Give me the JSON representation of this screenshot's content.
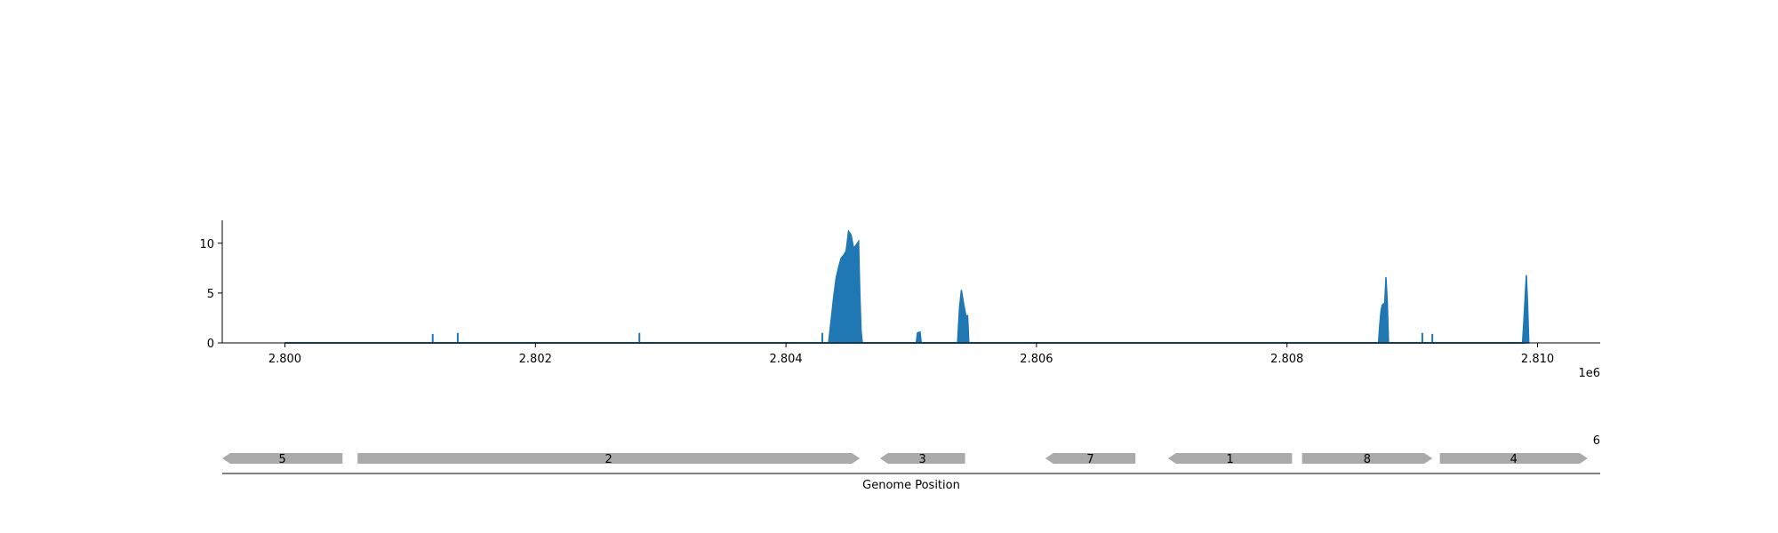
{
  "chart_data": {
    "type": "area",
    "title": "",
    "xlabel": "Genome Position",
    "ylabel": "",
    "x_offset_label": "1e6",
    "xlim": [
      2799500,
      2810500
    ],
    "ylim": [
      0,
      12.3
    ],
    "x_ticks": [
      2800000,
      2802000,
      2804000,
      2806000,
      2808000,
      2810000
    ],
    "x_tick_labels": [
      "2.800",
      "2.802",
      "2.804",
      "2.806",
      "2.808",
      "2.810"
    ],
    "y_ticks": [
      0,
      5,
      10
    ],
    "y_tick_labels": [
      "0",
      "5",
      "10"
    ],
    "grid": false,
    "legend": "none",
    "coverage_color": "#1f77b4",
    "baseline": [
      2800000,
      2809900
    ],
    "spikes": [
      {
        "x": 2801180,
        "y": 0.9
      },
      {
        "x": 2801380,
        "y": 1.0
      },
      {
        "x": 2802830,
        "y": 1.0
      },
      {
        "x": 2804290,
        "y": 1.0
      },
      {
        "x": 2805060,
        "y": 1.1
      },
      {
        "x": 2809080,
        "y": 1.0
      },
      {
        "x": 2809160,
        "y": 0.9
      }
    ],
    "peaks": [
      {
        "points": [
          [
            2804340,
            0
          ],
          [
            2804360,
            2.2
          ],
          [
            2804380,
            4.5
          ],
          [
            2804400,
            6.5
          ],
          [
            2804420,
            7.6
          ],
          [
            2804440,
            8.5
          ],
          [
            2804460,
            8.8
          ],
          [
            2804480,
            9.2
          ],
          [
            2804500,
            11.2
          ],
          [
            2804520,
            10.8
          ],
          [
            2804540,
            9.5
          ],
          [
            2804560,
            9.8
          ],
          [
            2804580,
            10.2
          ],
          [
            2804590,
            5.0
          ],
          [
            2804600,
            1.2
          ],
          [
            2804610,
            0
          ]
        ]
      },
      {
        "points": [
          [
            2805040,
            0
          ],
          [
            2805050,
            1.0
          ],
          [
            2805070,
            1.1
          ],
          [
            2805080,
            0
          ]
        ]
      },
      {
        "points": [
          [
            2805370,
            0
          ],
          [
            2805385,
            3.5
          ],
          [
            2805400,
            5.3
          ],
          [
            2805420,
            3.8
          ],
          [
            2805440,
            2.5
          ],
          [
            2805450,
            2.8
          ],
          [
            2805460,
            0
          ]
        ]
      },
      {
        "points": [
          [
            2808730,
            0
          ],
          [
            2808740,
            1.8
          ],
          [
            2808750,
            3.2
          ],
          [
            2808760,
            3.8
          ],
          [
            2808780,
            4.0
          ],
          [
            2808790,
            6.6
          ],
          [
            2808800,
            4.2
          ],
          [
            2808810,
            0
          ]
        ]
      },
      {
        "points": [
          [
            2809880,
            0
          ],
          [
            2809890,
            2.0
          ],
          [
            2809900,
            4.5
          ],
          [
            2809910,
            6.8
          ],
          [
            2809920,
            4.0
          ],
          [
            2809930,
            0
          ]
        ]
      }
    ],
    "genes": [
      {
        "label": "5",
        "start": 2799500,
        "end": 2800460,
        "strand": "-"
      },
      {
        "label": "2",
        "start": 2800580,
        "end": 2804590,
        "strand": "+"
      },
      {
        "label": "3",
        "start": 2804750,
        "end": 2805430,
        "strand": "-"
      },
      {
        "label": "7",
        "start": 2806070,
        "end": 2806790,
        "strand": "-"
      },
      {
        "label": "1",
        "start": 2807050,
        "end": 2808040,
        "strand": "-"
      },
      {
        "label": "8",
        "start": 2808120,
        "end": 2809160,
        "strand": "+"
      },
      {
        "label": "4",
        "start": 2809220,
        "end": 2810400,
        "strand": "+"
      }
    ],
    "gene_color": "#aaaaaa",
    "stray_label": "6"
  }
}
